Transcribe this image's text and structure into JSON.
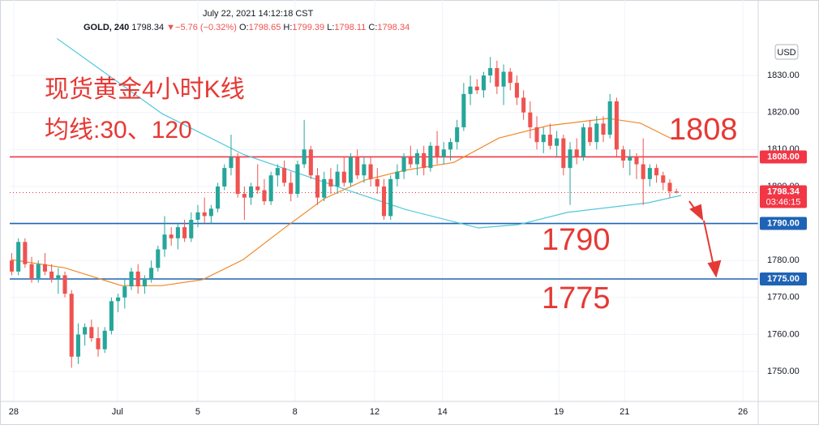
{
  "chart_data": {
    "type": "candlestick",
    "header": {
      "datetime": "July 22, 2021 14:12:18 CST",
      "symbol": "GOLD, 240",
      "price": "1798.34",
      "arrow": "▼",
      "change": "−5.76 (−0.32%)",
      "o_label": "O:",
      "o": "1798.65",
      "h_label": "H:",
      "h": "1799.39",
      "l_label": "L:",
      "l": "1798.11",
      "c_label": "C:",
      "c": "1798.34"
    },
    "annotations": [
      "现货黄金4小时K线",
      "均线:30、120"
    ],
    "currency": "USD",
    "up_color": "#26a69a",
    "down_color": "#ef5350",
    "xlim": [
      -0.3,
      112.3
    ],
    "xticks": [
      {
        "value": 0.3,
        "label": "28"
      },
      {
        "value": 15.9,
        "label": "Jul"
      },
      {
        "value": 28.0,
        "label": "5"
      },
      {
        "value": 42.6,
        "label": "8"
      },
      {
        "value": 54.6,
        "label": "12"
      },
      {
        "value": 64.8,
        "label": "14"
      },
      {
        "value": 82.3,
        "label": "19"
      },
      {
        "value": 92.2,
        "label": "21"
      },
      {
        "value": 110.0,
        "label": "26"
      }
    ],
    "ylim": [
      1741.9,
      1850.4
    ],
    "yticks": [
      {
        "value": 1750,
        "label": "1750.00"
      },
      {
        "value": 1760,
        "label": "1760.00"
      },
      {
        "value": 1770,
        "label": "1770.00"
      },
      {
        "value": 1780,
        "label": "1780.00"
      },
      {
        "value": 1790,
        "label": "1790.00"
      },
      {
        "value": 1800,
        "label": "1800.00"
      },
      {
        "value": 1810,
        "label": "1810.00"
      },
      {
        "value": 1820,
        "label": "1820.00"
      },
      {
        "value": 1830,
        "label": "1830.00"
      }
    ],
    "grid": true,
    "levels": [
      {
        "value": 1808,
        "label": "1808.00",
        "annotation": "1808",
        "color": "#f23645"
      },
      {
        "value": 1790,
        "label": "1790.00",
        "annotation": "1790",
        "color": "#1e63b5"
      },
      {
        "value": 1775,
        "label": "1775.00",
        "annotation": "1775",
        "color": "#1e63b5"
      }
    ],
    "last": {
      "value": 1798.34,
      "label": "1798.34",
      "countdown": "03:46:15",
      "color": "#f23645"
    },
    "series": [
      {
        "color": "#4fc8d8",
        "x": [
          6.8,
          22.6,
          34.8,
          50.7,
          59.2,
          70.2,
          76.3,
          83.6,
          95.8,
          100.7
        ],
        "values": [
          1840,
          1819.7,
          1808.7,
          1798.9,
          1793.8,
          1788.8,
          1789.7,
          1793,
          1795.6,
          1797.6
        ]
      },
      {
        "color": "#f0892b",
        "x": [
          0,
          8,
          16.5,
          22.6,
          28.7,
          34.8,
          40.9,
          47,
          53.1,
          59.2,
          66.5,
          73.3,
          80.6,
          89.7,
          94.6,
          99.5
        ],
        "values": [
          1780.2,
          1778,
          1773.2,
          1773.2,
          1774.8,
          1780.2,
          1788.6,
          1796.7,
          1801.7,
          1804.4,
          1806.5,
          1813.1,
          1816.4,
          1818.4,
          1817.1,
          1812.7
        ]
      }
    ],
    "candles": [
      [
        1780,
        1782,
        1776,
        1777
      ],
      [
        1777,
        1786,
        1776,
        1785
      ],
      [
        1785,
        1786,
        1778,
        1779
      ],
      [
        1779,
        1781,
        1774,
        1775
      ],
      [
        1775,
        1780,
        1774,
        1779
      ],
      [
        1779,
        1782,
        1776,
        1777
      ],
      [
        1777,
        1779,
        1774,
        1775
      ],
      [
        1775,
        1778,
        1771,
        1776
      ],
      [
        1776,
        1777,
        1770,
        1771
      ],
      [
        1771,
        1772,
        1751,
        1754
      ],
      [
        1754,
        1763,
        1752,
        1760
      ],
      [
        1760,
        1763,
        1757,
        1762
      ],
      [
        1762,
        1764,
        1758,
        1759
      ],
      [
        1759,
        1762,
        1754,
        1756
      ],
      [
        1756,
        1762,
        1755,
        1761
      ],
      [
        1761,
        1770,
        1760,
        1769
      ],
      [
        1769,
        1771,
        1766,
        1770
      ],
      [
        1770,
        1775,
        1767,
        1773
      ],
      [
        1773,
        1778,
        1772,
        1777
      ],
      [
        1777,
        1779,
        1771,
        1773
      ],
      [
        1773,
        1776,
        1771,
        1775
      ],
      [
        1775,
        1780,
        1774,
        1778
      ],
      [
        1778,
        1784,
        1777,
        1783
      ],
      [
        1783,
        1792,
        1781,
        1787
      ],
      [
        1787,
        1789,
        1784,
        1786
      ],
      [
        1786,
        1790,
        1783,
        1789
      ],
      [
        1789,
        1791,
        1785,
        1786
      ],
      [
        1786,
        1793,
        1785,
        1791
      ],
      [
        1791,
        1795,
        1789,
        1793
      ],
      [
        1793,
        1797,
        1790,
        1792
      ],
      [
        1792,
        1795,
        1790,
        1794
      ],
      [
        1794,
        1801,
        1793,
        1800
      ],
      [
        1800,
        1806,
        1799,
        1805
      ],
      [
        1805,
        1814,
        1803,
        1808
      ],
      [
        1808,
        1809,
        1797,
        1798
      ],
      [
        1798,
        1800,
        1791,
        1797
      ],
      [
        1797,
        1801,
        1795,
        1800
      ],
      [
        1800,
        1806,
        1798,
        1799
      ],
      [
        1799,
        1802,
        1795,
        1796
      ],
      [
        1796,
        1804,
        1795,
        1803
      ],
      [
        1803,
        1806,
        1800,
        1805
      ],
      [
        1805,
        1807,
        1800,
        1801
      ],
      [
        1801,
        1804,
        1796,
        1798
      ],
      [
        1798,
        1807,
        1797,
        1806
      ],
      [
        1806,
        1818,
        1805,
        1810
      ],
      [
        1810,
        1811,
        1802,
        1803
      ],
      [
        1803,
        1805,
        1795,
        1797
      ],
      [
        1797,
        1804,
        1796,
        1802
      ],
      [
        1802,
        1805,
        1798,
        1800
      ],
      [
        1800,
        1806,
        1798,
        1804
      ],
      [
        1804,
        1808,
        1800,
        1801
      ],
      [
        1801,
        1809,
        1800,
        1808
      ],
      [
        1808,
        1810,
        1802,
        1803
      ],
      [
        1803,
        1808,
        1801,
        1806
      ],
      [
        1806,
        1808,
        1800,
        1802
      ],
      [
        1802,
        1805,
        1798,
        1800
      ],
      [
        1800,
        1802,
        1791,
        1792
      ],
      [
        1792,
        1803,
        1791,
        1802
      ],
      [
        1802,
        1806,
        1800,
        1804
      ],
      [
        1804,
        1809,
        1802,
        1808
      ],
      [
        1808,
        1811,
        1805,
        1806
      ],
      [
        1806,
        1810,
        1803,
        1809
      ],
      [
        1809,
        1811,
        1803,
        1805
      ],
      [
        1805,
        1812,
        1804,
        1811
      ],
      [
        1811,
        1815,
        1806,
        1808
      ],
      [
        1808,
        1812,
        1806,
        1810
      ],
      [
        1810,
        1813,
        1807,
        1812
      ],
      [
        1812,
        1818,
        1810,
        1816
      ],
      [
        1816,
        1828,
        1815,
        1825
      ],
      [
        1825,
        1830,
        1822,
        1827
      ],
      [
        1827,
        1829,
        1825,
        1826
      ],
      [
        1826,
        1831,
        1824,
        1830
      ],
      [
        1830,
        1835,
        1828,
        1832
      ],
      [
        1832,
        1834,
        1825,
        1827
      ],
      [
        1827,
        1833,
        1822,
        1831
      ],
      [
        1831,
        1832,
        1826,
        1828
      ],
      [
        1828,
        1830,
        1822,
        1824
      ],
      [
        1824,
        1826,
        1818,
        1820
      ],
      [
        1820,
        1823,
        1813,
        1816
      ],
      [
        1816,
        1819,
        1810,
        1812
      ],
      [
        1812,
        1816,
        1809,
        1814
      ],
      [
        1814,
        1817,
        1810,
        1811
      ],
      [
        1811,
        1815,
        1808,
        1813
      ],
      [
        1813,
        1814,
        1803,
        1805
      ],
      [
        1805,
        1812,
        1795,
        1810
      ],
      [
        1810,
        1813,
        1806,
        1808
      ],
      [
        1808,
        1817,
        1807,
        1816
      ],
      [
        1816,
        1818,
        1811,
        1812
      ],
      [
        1812,
        1819,
        1810,
        1817
      ],
      [
        1817,
        1819,
        1812,
        1814
      ],
      [
        1814,
        1825,
        1813,
        1823
      ],
      [
        1823,
        1824,
        1808,
        1810
      ],
      [
        1810,
        1811,
        1805,
        1807
      ],
      [
        1807,
        1810,
        1803,
        1808
      ],
      [
        1808,
        1809,
        1802,
        1806
      ],
      [
        1806,
        1813,
        1795,
        1802
      ],
      [
        1802,
        1806,
        1800,
        1805
      ],
      [
        1805,
        1806,
        1801,
        1803
      ],
      [
        1803,
        1804,
        1799,
        1801
      ],
      [
        1801,
        1802,
        1797,
        1798.65
      ],
      [
        1798.65,
        1799.39,
        1798.11,
        1798.34
      ]
    ]
  }
}
